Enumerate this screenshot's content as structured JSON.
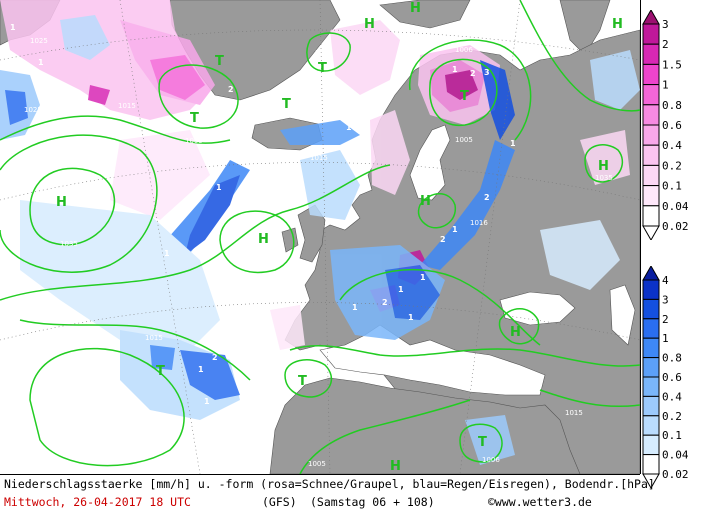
{
  "legend_snow": {
    "levels": [
      "3",
      "2",
      "1.5",
      "1",
      "0.8",
      "0.6",
      "0.4",
      "0.2",
      "0.1",
      "0.04",
      "0.02"
    ],
    "colors": [
      "#9c1070",
      "#c0189a",
      "#d828b4",
      "#ee44cc",
      "#f466d8",
      "#f78ae2",
      "#f9a8ea",
      "#fbc4f0",
      "#fcd8f5",
      "#fee8fa",
      "#ffffff"
    ]
  },
  "legend_rain": {
    "levels": [
      "4",
      "3",
      "2",
      "1",
      "0.8",
      "0.6",
      "0.4",
      "0.2",
      "0.1",
      "0.04",
      "0.02"
    ],
    "colors": [
      "#0a1ea0",
      "#0b32c8",
      "#1450e0",
      "#2a6ef0",
      "#3e88f6",
      "#5ca0f8",
      "#7ab6fa",
      "#9ccafc",
      "#badcfd",
      "#d6ecfe",
      "#ffffff"
    ]
  },
  "map": {
    "pressure_labels": [
      "1025",
      "1015",
      "1035",
      "1035",
      "1025",
      "1025",
      "1015",
      "1005",
      "1015",
      "1006",
      "1005",
      "1015",
      "1016",
      "1035",
      "1005",
      "1015",
      "1015",
      "1005",
      "1006"
    ],
    "high_label": "H",
    "low_label": "T",
    "precip_markers": [
      "1",
      "1",
      "2",
      "1",
      "1",
      "1",
      "1",
      "2",
      "3",
      "2",
      "1",
      "1",
      "2",
      "1",
      "1",
      "1",
      "1",
      "2",
      "1",
      "1",
      "2"
    ]
  },
  "footer": {
    "line1": "Niederschlagsstaerke [mm/h] u. -form (rosa=Schnee/Graupel, blau=Regen/Eisregen), Bodendr.[hPa]",
    "date": "Mittwoch, 26-04-2017  18 UTC",
    "model": "(GFS)",
    "run": "(Samstag 06 + 108)",
    "copyright": "©www.wetter3.de"
  }
}
